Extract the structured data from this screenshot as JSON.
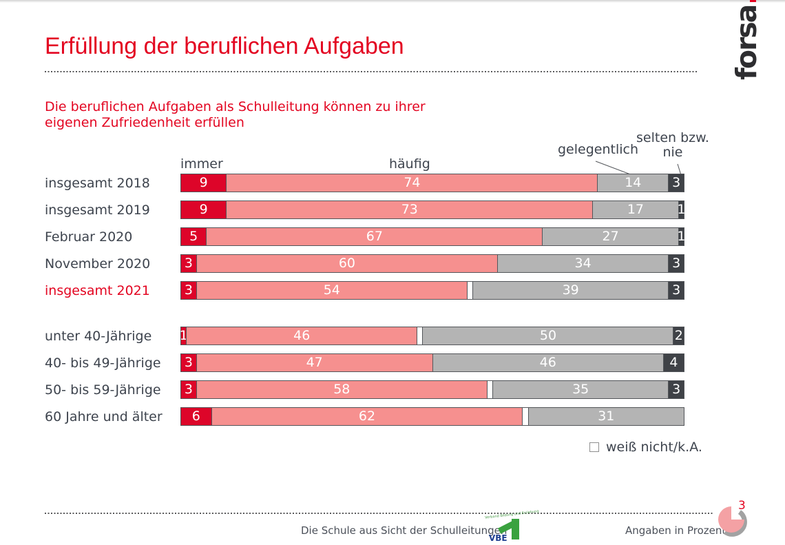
{
  "slide": {
    "title": "Erfüllung der beruflichen Aufgaben",
    "subtitle_line1": "Die beruflichen Aufgaben als Schulleitung können zu ihrer",
    "subtitle_line2": "eigenen Zufriedenheit erfüllen",
    "brand": "forsa",
    "page_number": "3",
    "footer_caption": "Die Schule aus Sicht der Schulleitungen",
    "footer_note": "Angaben in Prozent",
    "vbe_name": "VBE",
    "vbe_tagline": "Verband Bildung und Erziehung"
  },
  "legend": {
    "weiss_label": "weiß nicht/k.A."
  },
  "colors": {
    "accent_red": "#e30521",
    "immer": "#dd0529",
    "haeufig": "#f6908f",
    "weiss_nicht": "#ffffff",
    "gelegentlich": "#b4b4b4",
    "selten_nie": "#3f4247",
    "bar_border": "#53565a"
  },
  "chart_data": {
    "type": "bar",
    "stacked": true,
    "orientation": "horizontal",
    "unit": "percent",
    "xlim": [
      0,
      100
    ],
    "title": "Die beruflichen Aufgaben als Schulleitung können zu ihrer eigenen Zufriedenheit erfüllen",
    "series": [
      "immer",
      "häufig",
      "weiß nicht/k.A.",
      "gelegentlich",
      "selten bzw. nie"
    ],
    "series_colors": [
      "#dd0529",
      "#f6908f",
      "#ffffff",
      "#b4b4b4",
      "#3f4247"
    ],
    "header_labels": {
      "immer": "immer",
      "haeufig": "häufig",
      "gelegentlich": "gelegentlich",
      "selten": "selten bzw.\nnie"
    },
    "rows": [
      {
        "label": "insgesamt 2018",
        "values": [
          9,
          74,
          0,
          14,
          3
        ]
      },
      {
        "label": "insgesamt 2019",
        "values": [
          9,
          73,
          0,
          17,
          1
        ]
      },
      {
        "label": "Februar 2020",
        "values": [
          5,
          67,
          0,
          27,
          1
        ]
      },
      {
        "label": "November 2020",
        "values": [
          3,
          60,
          0,
          34,
          3
        ]
      },
      {
        "label": "insgesamt 2021",
        "values": [
          3,
          54,
          1,
          39,
          3
        ],
        "highlight": true
      },
      {
        "label": "unter 40-Jährige",
        "values": [
          1,
          46,
          1,
          50,
          2
        ],
        "gap_before": true
      },
      {
        "label": "40- bis 49-Jährige",
        "values": [
          3,
          47,
          0,
          46,
          4
        ]
      },
      {
        "label": "50- bis 59-Jährige",
        "values": [
          3,
          58,
          1,
          35,
          3
        ]
      },
      {
        "label": "60 Jahre und älter",
        "values": [
          6,
          62,
          1,
          31,
          0
        ]
      }
    ]
  }
}
